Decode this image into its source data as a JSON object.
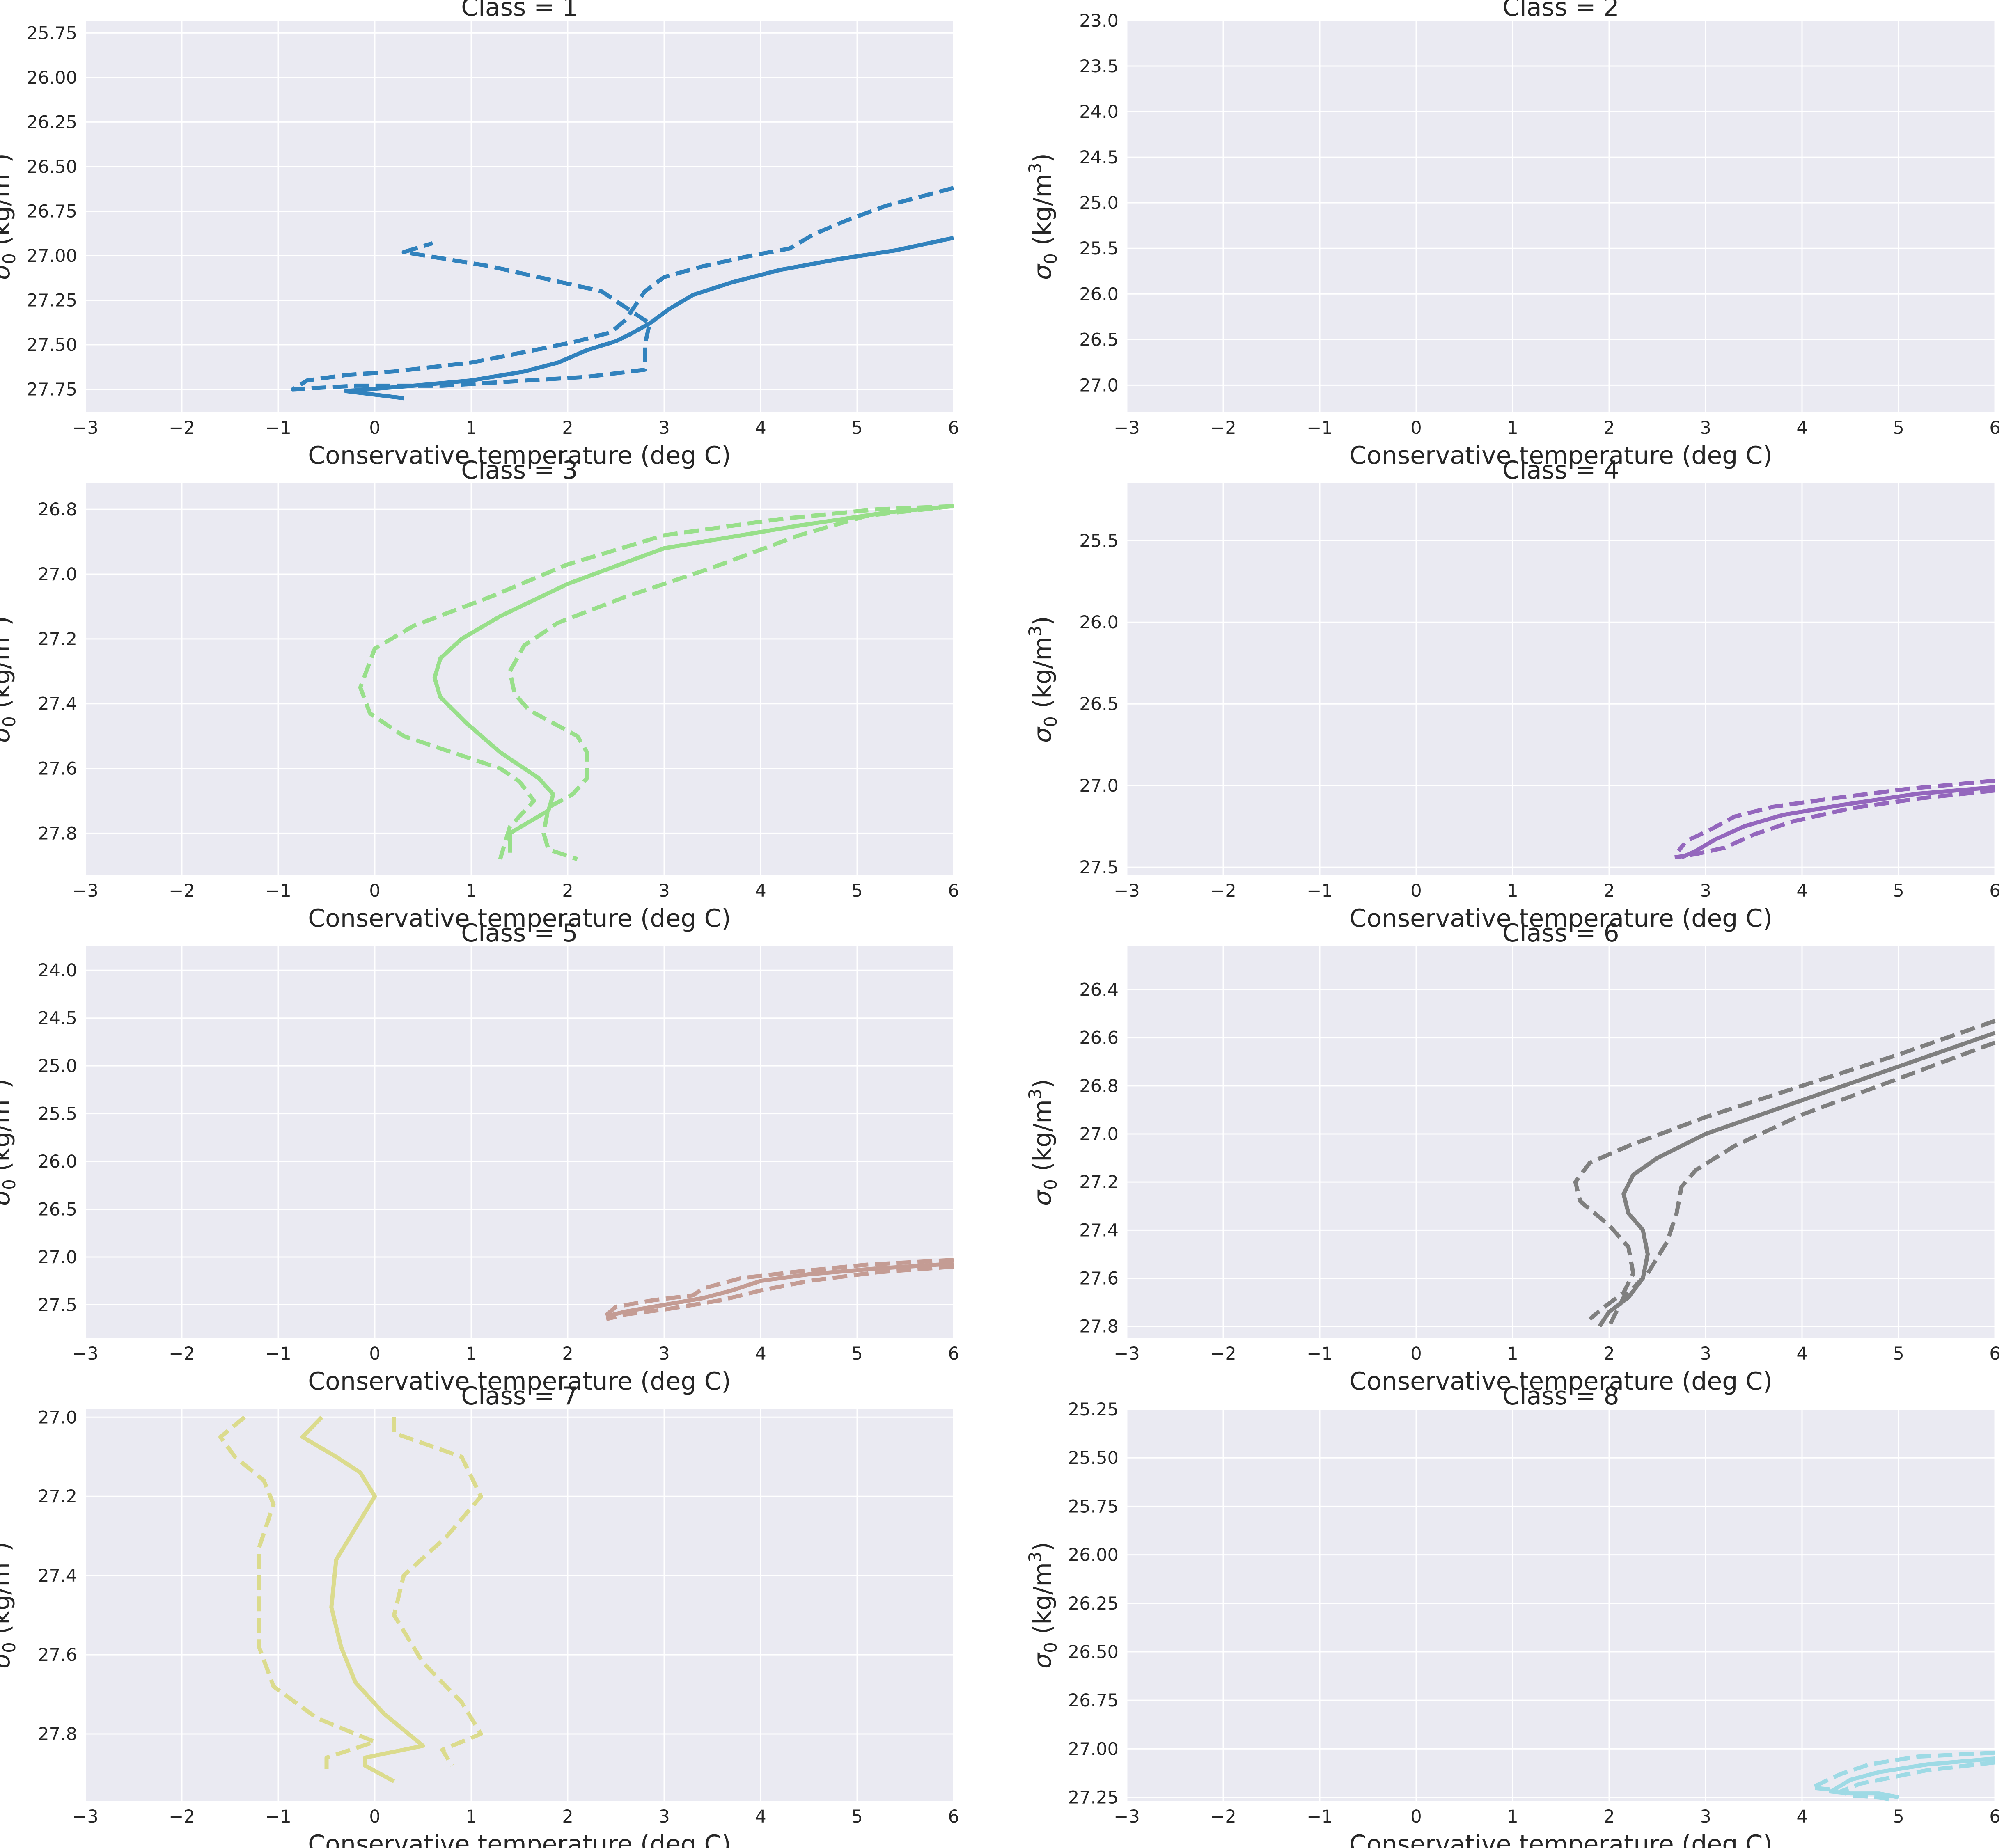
{
  "figure": {
    "xlabel": "Conservative temperature (deg C)",
    "ylabel_main": "σ",
    "ylabel_sub": "0",
    "ylabel_unit": " (kg/m",
    "ylabel_sup": "3",
    "ylabel_close": ")",
    "background": "#eaeaf2",
    "grid_color": "#ffffff"
  },
  "chart_data": [
    {
      "type": "line",
      "title": "Class = 1",
      "color": "#3182bd",
      "xlim": [
        -3,
        6
      ],
      "ylim": [
        27.88,
        25.68
      ],
      "y_inverted": true,
      "xticks": [
        "−3",
        "−2",
        "−1",
        "0",
        "1",
        "2",
        "3",
        "4",
        "5",
        "6"
      ],
      "yticks": [
        "25.75",
        "26.00",
        "26.25",
        "26.50",
        "26.75",
        "27.00",
        "27.25",
        "27.50",
        "27.75"
      ],
      "grid": true,
      "series": [
        {
          "style": "solid",
          "x": [
            6.0,
            5.4,
            4.8,
            4.2,
            3.7,
            3.3,
            3.05,
            2.85,
            2.65,
            2.5,
            2.2,
            1.9,
            1.55,
            1.0,
            0.4,
            -0.3,
            0.3
          ],
          "y": [
            26.9,
            26.97,
            27.02,
            27.08,
            27.15,
            27.22,
            27.3,
            27.38,
            27.44,
            27.48,
            27.53,
            27.6,
            27.65,
            27.7,
            27.73,
            27.76,
            27.8
          ]
        },
        {
          "style": "dashed",
          "x": [
            6.0,
            5.3,
            4.9,
            4.55,
            4.3,
            3.9,
            3.4,
            3.0,
            2.8,
            2.7,
            2.6,
            2.45,
            2.1,
            1.75,
            1.0,
            0.2,
            -0.3,
            -0.7,
            -0.85,
            -0.2,
            0.7,
            2.2,
            2.8,
            2.8,
            2.85,
            2.35,
            1.2,
            0.3,
            0.6
          ],
          "y": [
            26.62,
            26.72,
            26.8,
            26.88,
            26.96,
            27.0,
            27.06,
            27.12,
            27.2,
            27.28,
            27.36,
            27.43,
            27.48,
            27.52,
            27.6,
            27.65,
            27.67,
            27.7,
            27.75,
            27.73,
            27.73,
            27.68,
            27.64,
            27.5,
            27.38,
            27.2,
            27.06,
            26.98,
            26.93
          ]
        }
      ]
    },
    {
      "type": "line",
      "title": "Class = 2",
      "color": "#3182bd",
      "xlim": [
        -3,
        6
      ],
      "ylim": [
        27.3,
        23.0
      ],
      "y_inverted": true,
      "xticks": [
        "−3",
        "−2",
        "−1",
        "0",
        "1",
        "2",
        "3",
        "4",
        "5",
        "6"
      ],
      "yticks": [
        "23.0",
        "23.5",
        "24.0",
        "24.5",
        "25.0",
        "25.5",
        "26.0",
        "26.5",
        "27.0"
      ],
      "grid": true,
      "series": []
    },
    {
      "type": "line",
      "title": "Class = 3",
      "color": "#98df8a",
      "xlim": [
        -3,
        6
      ],
      "ylim": [
        27.93,
        26.72
      ],
      "y_inverted": true,
      "xticks": [
        "−3",
        "−2",
        "−1",
        "0",
        "1",
        "2",
        "3",
        "4",
        "5",
        "6"
      ],
      "yticks": [
        "26.8",
        "27.0",
        "27.2",
        "27.4",
        "27.6",
        "27.8"
      ],
      "grid": true,
      "series": [
        {
          "style": "solid",
          "x": [
            6.0,
            5.3,
            4.4,
            3.0,
            2.0,
            1.3,
            0.9,
            0.68,
            0.62,
            0.68,
            0.95,
            1.3,
            1.7,
            1.85,
            1.8,
            1.4,
            1.4
          ],
          "y": [
            26.79,
            26.81,
            26.85,
            26.92,
            27.03,
            27.13,
            27.2,
            27.26,
            27.32,
            27.38,
            27.46,
            27.55,
            27.63,
            27.68,
            27.73,
            27.8,
            27.86
          ]
        },
        {
          "style": "dashed",
          "x": [
            6.0,
            5.2,
            4.2,
            3.0,
            2.0,
            1.2,
            0.4,
            0.0,
            -0.15,
            -0.05,
            0.3,
            0.8,
            1.3,
            1.5,
            1.65,
            1.4,
            1.3
          ],
          "y": [
            26.79,
            26.8,
            26.83,
            26.88,
            26.97,
            27.07,
            27.16,
            27.23,
            27.35,
            27.43,
            27.5,
            27.55,
            27.6,
            27.64,
            27.7,
            27.78,
            27.88
          ]
        },
        {
          "style": "dashed",
          "x": [
            6.0,
            5.1,
            4.4,
            3.5,
            2.6,
            1.9,
            1.55,
            1.4,
            1.45,
            1.6,
            2.1,
            2.2,
            2.2,
            2.05,
            1.8,
            1.75,
            1.8,
            2.1
          ],
          "y": [
            26.79,
            26.82,
            26.88,
            26.98,
            27.07,
            27.15,
            27.22,
            27.3,
            27.37,
            27.42,
            27.5,
            27.55,
            27.63,
            27.68,
            27.72,
            27.8,
            27.85,
            27.88
          ]
        }
      ]
    },
    {
      "type": "line",
      "title": "Class = 4",
      "color": "#9467bd",
      "xlim": [
        -3,
        6
      ],
      "ylim": [
        27.55,
        25.15
      ],
      "y_inverted": true,
      "xticks": [
        "−3",
        "−2",
        "−1",
        "0",
        "1",
        "2",
        "3",
        "4",
        "5",
        "6"
      ],
      "yticks": [
        "25.5",
        "26.0",
        "26.5",
        "27.0",
        "27.5"
      ],
      "grid": true,
      "series": [
        {
          "style": "solid",
          "x": [
            6.0,
            5.2,
            4.4,
            3.8,
            3.4,
            3.1,
            2.9,
            2.75
          ],
          "y": [
            27.01,
            27.05,
            27.12,
            27.18,
            27.25,
            27.33,
            27.4,
            27.44
          ]
        },
        {
          "style": "dashed",
          "x": [
            6.0,
            5.1,
            4.3,
            3.7,
            3.3,
            3.05,
            2.8,
            2.72
          ],
          "y": [
            26.97,
            27.02,
            27.08,
            27.13,
            27.19,
            27.27,
            27.34,
            27.4
          ]
        },
        {
          "style": "dashed",
          "x": [
            6.0,
            5.2,
            4.5,
            3.9,
            3.5,
            3.2,
            2.9,
            2.68
          ],
          "y": [
            27.03,
            27.08,
            27.14,
            27.22,
            27.3,
            27.38,
            27.42,
            27.44
          ]
        }
      ]
    },
    {
      "type": "line",
      "title": "Class = 5",
      "color": "#c49c94",
      "xlim": [
        -3,
        6
      ],
      "ylim": [
        27.85,
        23.75
      ],
      "y_inverted": true,
      "xticks": [
        "−3",
        "−2",
        "−1",
        "0",
        "1",
        "2",
        "3",
        "4",
        "5",
        "6"
      ],
      "yticks": [
        "24.0",
        "24.5",
        "25.0",
        "25.5",
        "26.0",
        "26.5",
        "27.0",
        "27.5"
      ],
      "grid": true,
      "series": [
        {
          "style": "solid",
          "x": [
            6.0,
            5.2,
            4.5,
            4.0,
            3.7,
            3.4,
            3.0,
            2.6,
            2.4
          ],
          "y": [
            27.07,
            27.12,
            27.18,
            27.25,
            27.35,
            27.43,
            27.5,
            27.57,
            27.62
          ]
        },
        {
          "style": "dashed",
          "x": [
            6.0,
            5.1,
            4.4,
            3.8,
            3.4,
            3.3,
            2.9,
            2.5,
            2.35
          ],
          "y": [
            27.03,
            27.08,
            27.15,
            27.22,
            27.33,
            27.4,
            27.45,
            27.52,
            27.65
          ]
        },
        {
          "style": "dashed",
          "x": [
            6.0,
            5.2,
            4.5,
            4.0,
            3.6,
            3.0,
            2.6,
            2.4
          ],
          "y": [
            27.1,
            27.16,
            27.25,
            27.35,
            27.45,
            27.55,
            27.6,
            27.65
          ]
        }
      ]
    },
    {
      "type": "line",
      "title": "Class = 6",
      "color": "#7f7f7f",
      "xlim": [
        -3,
        6
      ],
      "ylim": [
        27.85,
        26.22
      ],
      "y_inverted": true,
      "xticks": [
        "−3",
        "−2",
        "−1",
        "0",
        "1",
        "2",
        "3",
        "4",
        "5",
        "6"
      ],
      "yticks": [
        "26.4",
        "26.6",
        "26.8",
        "27.0",
        "27.2",
        "27.4",
        "27.6",
        "27.8"
      ],
      "grid": true,
      "series": [
        {
          "style": "solid",
          "x": [
            6.0,
            5.0,
            4.0,
            3.0,
            2.5,
            2.25,
            2.15,
            2.2,
            2.35,
            2.4,
            2.35,
            2.2,
            2.0,
            1.9
          ],
          "y": [
            26.58,
            26.72,
            26.86,
            27.0,
            27.1,
            27.17,
            27.25,
            27.33,
            27.4,
            27.5,
            27.6,
            27.68,
            27.74,
            27.8
          ]
        },
        {
          "style": "dashed",
          "x": [
            6.0,
            5.0,
            4.0,
            3.0,
            2.2,
            1.8,
            1.65,
            1.7,
            2.0,
            2.2,
            2.25,
            2.15,
            1.95,
            1.8
          ],
          "y": [
            26.53,
            26.67,
            26.8,
            26.93,
            27.05,
            27.12,
            27.2,
            27.28,
            27.38,
            27.47,
            27.58,
            27.66,
            27.72,
            27.77
          ]
        },
        {
          "style": "dashed",
          "x": [
            6.0,
            5.0,
            4.0,
            3.3,
            2.9,
            2.75,
            2.7,
            2.6,
            2.4,
            2.15,
            2.0
          ],
          "y": [
            26.62,
            26.77,
            26.92,
            27.05,
            27.15,
            27.22,
            27.33,
            27.45,
            27.58,
            27.68,
            27.8
          ]
        }
      ]
    },
    {
      "type": "line",
      "title": "Class = 7",
      "color": "#dbdb8d",
      "xlim": [
        -3,
        6
      ],
      "ylim": [
        27.97,
        26.98
      ],
      "y_inverted": true,
      "xticks": [
        "−3",
        "−2",
        "−1",
        "0",
        "1",
        "2",
        "3",
        "4",
        "5",
        "6"
      ],
      "yticks": [
        "27.0",
        "27.2",
        "27.4",
        "27.6",
        "27.8"
      ],
      "grid": true,
      "series": [
        {
          "style": "solid",
          "x": [
            -0.55,
            -0.75,
            -0.4,
            -0.15,
            0.0,
            -0.2,
            -0.4,
            -0.45,
            -0.35,
            -0.2,
            0.1,
            0.5,
            -0.1,
            -0.1,
            0.2
          ],
          "y": [
            27.0,
            27.05,
            27.1,
            27.14,
            27.2,
            27.28,
            27.36,
            27.48,
            27.58,
            27.67,
            27.75,
            27.83,
            27.86,
            27.88,
            27.92
          ]
        },
        {
          "style": "dashed",
          "x": [
            -1.35,
            -1.6,
            -1.45,
            -1.15,
            -1.05,
            -1.2,
            -1.2,
            -1.2,
            -1.05,
            -0.6,
            0.0,
            -0.5,
            -0.5
          ],
          "y": [
            27.0,
            27.05,
            27.1,
            27.16,
            27.22,
            27.33,
            27.45,
            27.58,
            27.68,
            27.76,
            27.82,
            27.86,
            27.9
          ]
        },
        {
          "style": "dashed",
          "x": [
            0.2,
            0.2,
            0.9,
            1.1,
            0.75,
            0.3,
            0.2,
            0.5,
            0.9,
            1.1,
            0.7,
            0.8
          ],
          "y": [
            27.0,
            27.04,
            27.1,
            27.2,
            27.3,
            27.4,
            27.5,
            27.62,
            27.72,
            27.8,
            27.84,
            27.88
          ]
        }
      ]
    },
    {
      "type": "line",
      "title": "Class = 8",
      "color": "#9edae5",
      "xlim": [
        -3,
        6
      ],
      "ylim": [
        27.27,
        25.25
      ],
      "y_inverted": true,
      "xticks": [
        "−3",
        "−2",
        "−1",
        "0",
        "1",
        "2",
        "3",
        "4",
        "5",
        "6"
      ],
      "yticks": [
        "25.25",
        "25.50",
        "25.75",
        "26.00",
        "26.25",
        "26.50",
        "26.75",
        "27.00",
        "27.25"
      ],
      "grid": true,
      "series": [
        {
          "style": "solid",
          "x": [
            6.0,
            5.3,
            4.8,
            4.5,
            4.3,
            4.5,
            4.8,
            5.0
          ],
          "y": [
            27.05,
            27.08,
            27.12,
            27.16,
            27.22,
            27.23,
            27.23,
            27.25
          ]
        },
        {
          "style": "dashed",
          "x": [
            6.0,
            5.2,
            4.7,
            4.4,
            4.1,
            4.3
          ],
          "y": [
            27.02,
            27.04,
            27.08,
            27.13,
            27.2,
            27.21
          ]
        },
        {
          "style": "dashed",
          "x": [
            6.0,
            5.3,
            4.9,
            4.6,
            4.4,
            4.5,
            4.8,
            4.9
          ],
          "y": [
            27.07,
            27.11,
            27.15,
            27.18,
            27.22,
            27.24,
            27.25,
            27.26
          ]
        }
      ]
    }
  ]
}
